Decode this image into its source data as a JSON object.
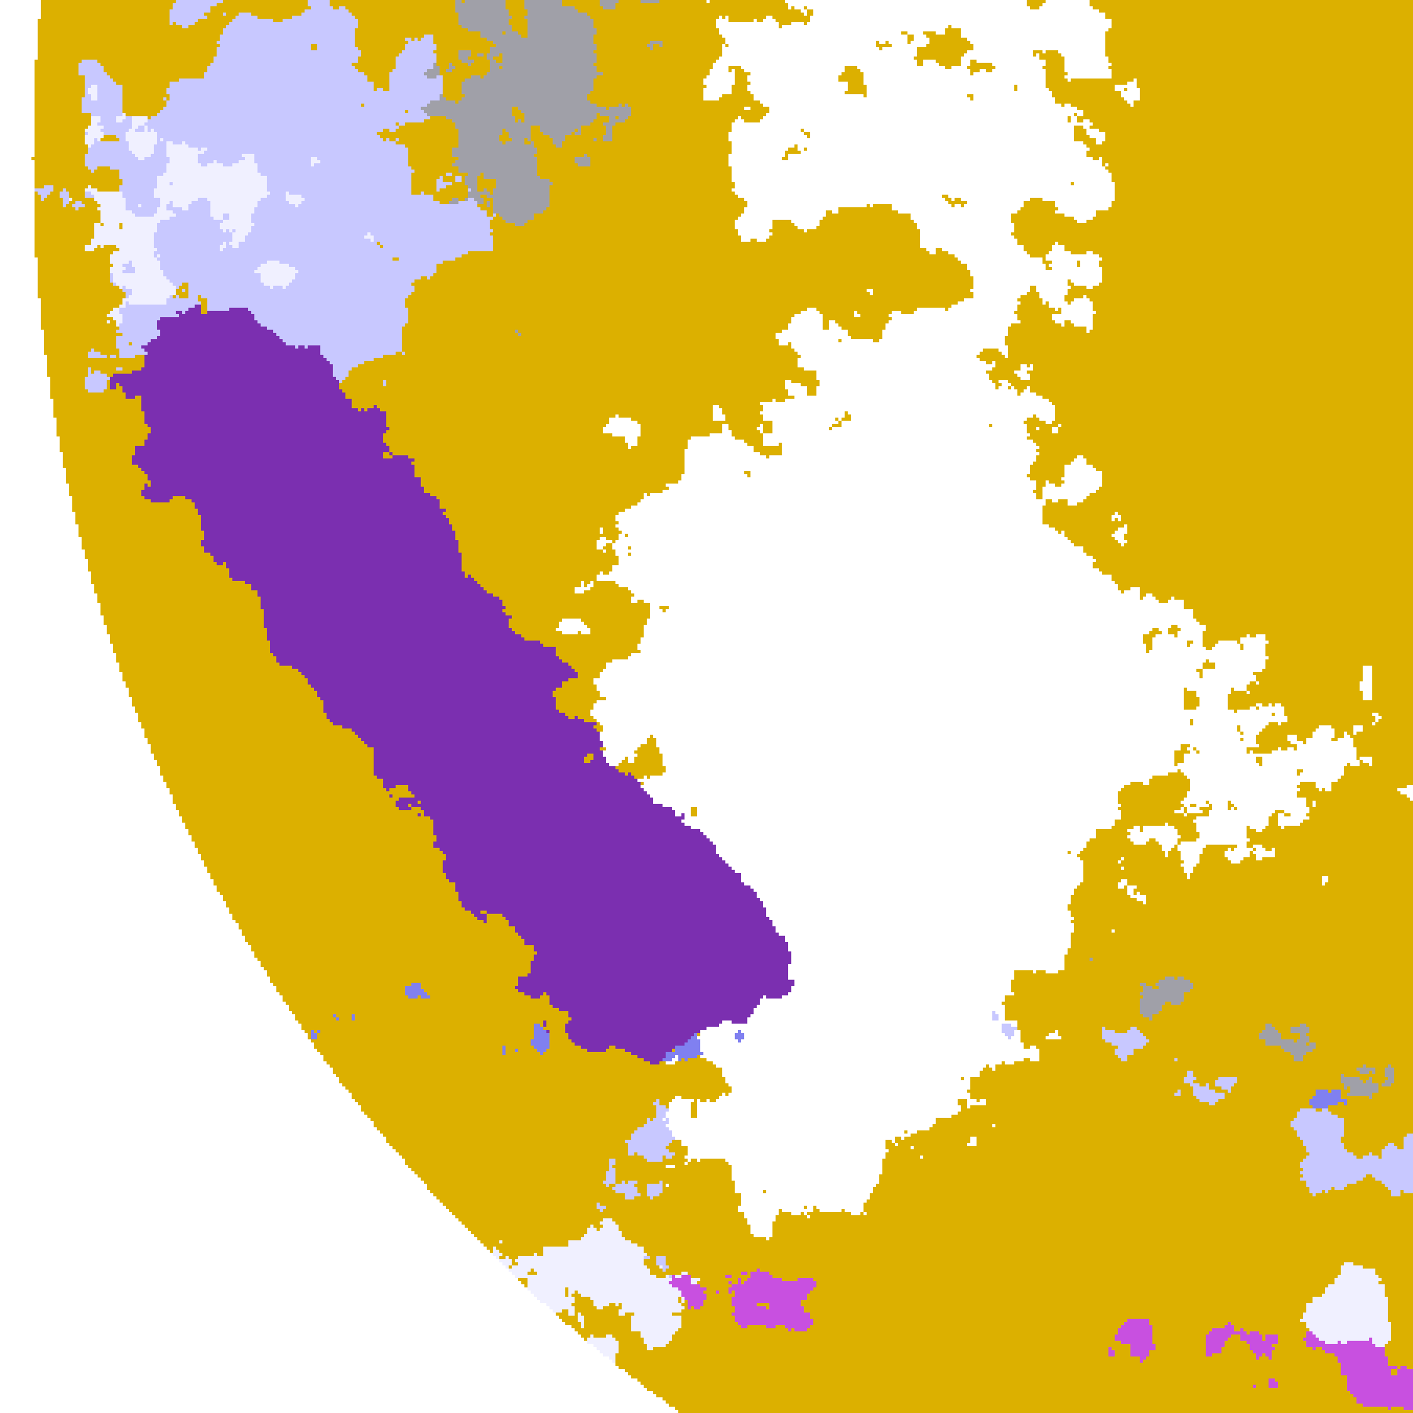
{
  "image": {
    "kind": "satellite cloud-type classification, limb of Earth disk",
    "space_color": "#ffffff",
    "palette": {
      "clear": "#ffffff",
      "low_cloud": "#dcb000",
      "low_cloud_dark": "#b8860b",
      "mid_cloud": "#a0a0a8",
      "high_thin": "#c8c8ff",
      "high_opaque": "#8080f0",
      "very_high": "#f0f0ff",
      "cirrus_over": "#c850e0",
      "deep_stratus": "#7b2fb0"
    }
  }
}
